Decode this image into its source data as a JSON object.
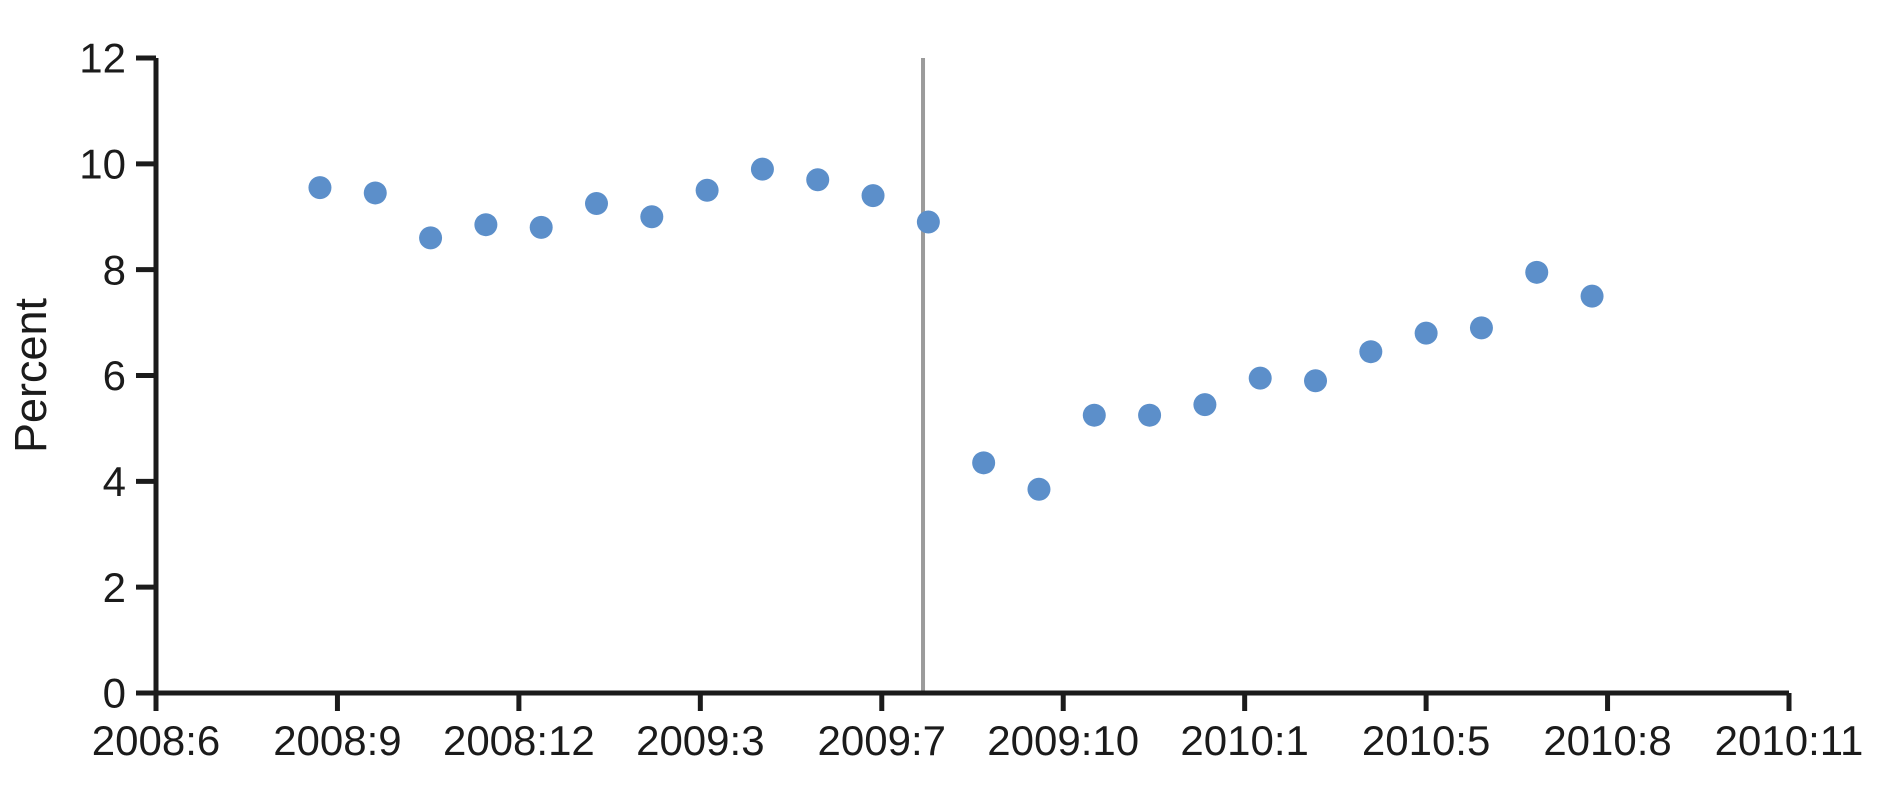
{
  "figure": {
    "background_color": "#ffffff",
    "axis_color": "#1b1b1b",
    "text_color": "#1b1b1b"
  },
  "chart_data": {
    "type": "scatter",
    "title": "",
    "xlabel": "",
    "ylabel": "Percent",
    "ylim": [
      0,
      12
    ],
    "y_ticks": [
      0,
      2,
      4,
      6,
      8,
      10,
      12
    ],
    "x_tick_labels": [
      "2008:6",
      "2008:9",
      "2008:12",
      "2009:3",
      "2009:7",
      "2009:10",
      "2010:1",
      "2010:5",
      "2010:8",
      "2010:11"
    ],
    "x": [
      "2008:9",
      "2008:10",
      "2008:11",
      "2008:12",
      "2009:1",
      "2009:2",
      "2009:3",
      "2009:4",
      "2009:5",
      "2009:6",
      "2009:7",
      "2009:8",
      "2009:9",
      "2009:10",
      "2009:11",
      "2009:12",
      "2010:1",
      "2010:2",
      "2010:3",
      "2010:4",
      "2010:5",
      "2010:6",
      "2010:7",
      "2010:8"
    ],
    "values": [
      9.55,
      9.45,
      8.6,
      8.85,
      8.8,
      9.25,
      9.0,
      9.5,
      9.9,
      9.7,
      9.4,
      8.9,
      4.35,
      3.85,
      5.25,
      5.25,
      5.45,
      5.95,
      5.9,
      6.45,
      6.8,
      6.9,
      7.95,
      7.5
    ],
    "point_color": "#5C8FCA",
    "vline": {
      "between": [
        "2009:8",
        "2009:9"
      ],
      "color": "#9B9B9B"
    },
    "layout": {
      "grid": false,
      "legend": false,
      "points_start_frac": 0.1004,
      "points_end_frac": 0.8794,
      "vline_frac": 0.4697
    }
  }
}
